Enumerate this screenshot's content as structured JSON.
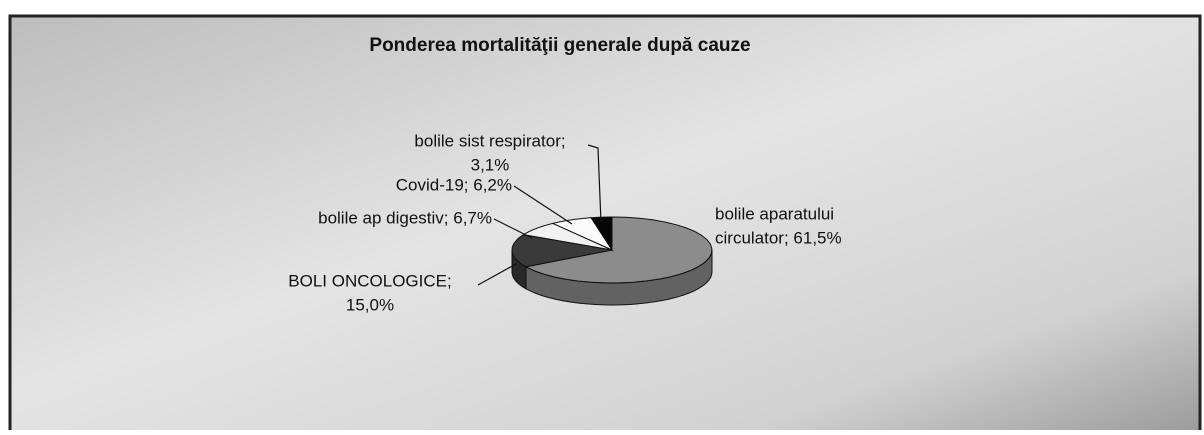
{
  "chart_data": {
    "type": "pie3d",
    "title": "Ponderea mortalităţii generale  după cauze",
    "values": [
      61.5,
      15.0,
      6.7,
      6.2,
      3.1
    ],
    "value_labels": [
      [
        "bolile aparatului",
        "circulator; 61,5%"
      ],
      [
        "BOLI ONCOLOGICE;",
        "15,0%"
      ],
      [
        "bolile ap digestiv; 6,7%"
      ],
      [
        "Covid-19; 6,2%"
      ],
      [
        "bolile sist respirator;",
        "3,1%"
      ]
    ],
    "colors": [
      "#8c8c8c",
      "#3a3a3a",
      "#f2f2f2",
      "#fbfbfb",
      "#050505"
    ]
  }
}
